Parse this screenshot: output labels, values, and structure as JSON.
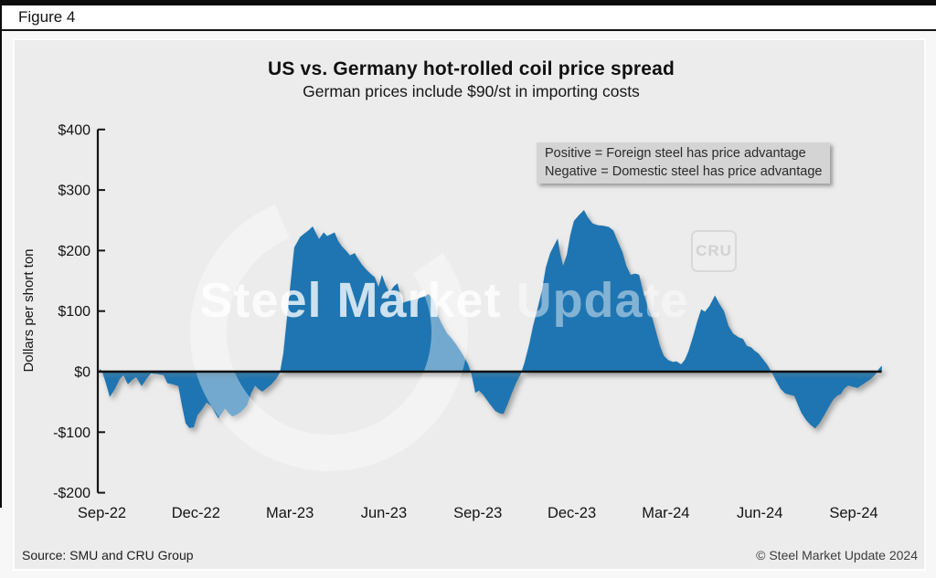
{
  "figure_label": "Figure 4",
  "title": "US vs. Germany hot-rolled coil price spread",
  "subtitle": "German prices include $90/st in importing costs",
  "annotation": {
    "line1": "Positive = Foreign steel has price advantage",
    "line2": "Negative = Domestic steel has price advantage"
  },
  "watermark": {
    "primary": "Steel Market",
    "secondary": "Update",
    "logo": "CRU"
  },
  "footer": {
    "source": "Source: SMU and CRU Group",
    "copyright": "© Steel Market Update 2024"
  },
  "colors": {
    "area_blue": "#1e75b1",
    "panel_bg": "#ececec",
    "annotation_bg": "#d4d4d4",
    "axis_black": "#141414"
  },
  "chart_data": {
    "type": "area",
    "title": "US vs. Germany hot-rolled coil price spread",
    "subtitle": "German prices include $90/st in importing costs",
    "ylabel": "Dollars per short ton",
    "ylim": [
      -200,
      400
    ],
    "ytick_values": [
      400,
      300,
      200,
      100,
      0,
      -100,
      -200
    ],
    "ytick_labels": [
      "$400",
      "$300",
      "$200",
      "$100",
      "$0",
      "-$100",
      "-$200"
    ],
    "xtick_labels": [
      "Sep-22",
      "Dec-22",
      "Mar-23",
      "Jun-23",
      "Sep-23",
      "Dec-23",
      "Mar-24",
      "Jun-24",
      "Sep-24"
    ],
    "xtick_positions_months": [
      0,
      3,
      6,
      9,
      12,
      15,
      18,
      21,
      24
    ],
    "x_unit": "months since Sep-2022",
    "series_name": "US minus Germany hot-rolled coil price spread ($/short ton)",
    "grid": false,
    "legend": "none",
    "baseline": 0,
    "points": [
      [
        -0.07,
        5
      ],
      [
        0.01,
        0
      ],
      [
        0.13,
        -20
      ],
      [
        0.25,
        -42
      ],
      [
        0.42,
        -28
      ],
      [
        0.57,
        -12
      ],
      [
        0.69,
        -6
      ],
      [
        0.83,
        -21
      ],
      [
        0.98,
        -13
      ],
      [
        1.09,
        -9
      ],
      [
        1.27,
        -24
      ],
      [
        1.42,
        -12
      ],
      [
        1.56,
        -3
      ],
      [
        1.77,
        -4
      ],
      [
        1.97,
        -6
      ],
      [
        2.09,
        -19
      ],
      [
        2.26,
        -21
      ],
      [
        2.44,
        -24
      ],
      [
        2.55,
        -55
      ],
      [
        2.67,
        -85
      ],
      [
        2.79,
        -93
      ],
      [
        2.93,
        -92
      ],
      [
        3.05,
        -72
      ],
      [
        3.2,
        -62
      ],
      [
        3.34,
        -51
      ],
      [
        3.49,
        -57
      ],
      [
        3.63,
        -70
      ],
      [
        3.72,
        -77
      ],
      [
        3.84,
        -68
      ],
      [
        3.93,
        -61
      ],
      [
        4.04,
        -68
      ],
      [
        4.16,
        -74
      ],
      [
        4.3,
        -71
      ],
      [
        4.45,
        -66
      ],
      [
        4.63,
        -56
      ],
      [
        4.77,
        -35
      ],
      [
        4.89,
        -23
      ],
      [
        5.0,
        -29
      ],
      [
        5.12,
        -33
      ],
      [
        5.27,
        -27
      ],
      [
        5.41,
        -21
      ],
      [
        5.56,
        -12
      ],
      [
        5.68,
        -2
      ],
      [
        5.79,
        30
      ],
      [
        5.91,
        90
      ],
      [
        6.03,
        150
      ],
      [
        6.14,
        205
      ],
      [
        6.32,
        222
      ],
      [
        6.46,
        228
      ],
      [
        6.61,
        234
      ],
      [
        6.73,
        240
      ],
      [
        6.84,
        228
      ],
      [
        6.93,
        219
      ],
      [
        7.08,
        230
      ],
      [
        7.19,
        224
      ],
      [
        7.31,
        227
      ],
      [
        7.43,
        230
      ],
      [
        7.54,
        216
      ],
      [
        7.66,
        207
      ],
      [
        7.81,
        199
      ],
      [
        7.92,
        192
      ],
      [
        8.07,
        196
      ],
      [
        8.19,
        185
      ],
      [
        8.3,
        177
      ],
      [
        8.45,
        168
      ],
      [
        8.59,
        161
      ],
      [
        8.71,
        156
      ],
      [
        8.83,
        140
      ],
      [
        8.94,
        160
      ],
      [
        9.06,
        143
      ],
      [
        9.18,
        130
      ],
      [
        9.32,
        141
      ],
      [
        9.44,
        146
      ],
      [
        9.58,
        113
      ],
      [
        9.73,
        116
      ],
      [
        9.91,
        118
      ],
      [
        10.11,
        121
      ],
      [
        10.29,
        124
      ],
      [
        10.43,
        128
      ],
      [
        10.58,
        119
      ],
      [
        10.72,
        93
      ],
      [
        10.87,
        77
      ],
      [
        11.02,
        63
      ],
      [
        11.16,
        55
      ],
      [
        11.31,
        45
      ],
      [
        11.42,
        36
      ],
      [
        11.54,
        26
      ],
      [
        11.69,
        12
      ],
      [
        11.8,
        -5
      ],
      [
        11.92,
        -35
      ],
      [
        12.04,
        -31
      ],
      [
        12.18,
        -39
      ],
      [
        12.36,
        -52
      ],
      [
        12.56,
        -65
      ],
      [
        12.71,
        -69
      ],
      [
        12.82,
        -70
      ],
      [
        12.94,
        -55
      ],
      [
        13.09,
        -35
      ],
      [
        13.23,
        -18
      ],
      [
        13.38,
        -3
      ],
      [
        13.49,
        15
      ],
      [
        13.64,
        45
      ],
      [
        13.76,
        75
      ],
      [
        13.9,
        103
      ],
      [
        14.05,
        135
      ],
      [
        14.17,
        172
      ],
      [
        14.31,
        196
      ],
      [
        14.43,
        208
      ],
      [
        14.55,
        220
      ],
      [
        14.63,
        195
      ],
      [
        14.72,
        175
      ],
      [
        14.84,
        193
      ],
      [
        14.95,
        225
      ],
      [
        15.07,
        249
      ],
      [
        15.22,
        258
      ],
      [
        15.39,
        267
      ],
      [
        15.51,
        255
      ],
      [
        15.66,
        245
      ],
      [
        15.83,
        242
      ],
      [
        16.01,
        241
      ],
      [
        16.18,
        239
      ],
      [
        16.33,
        233
      ],
      [
        16.47,
        215
      ],
      [
        16.62,
        197
      ],
      [
        16.74,
        175
      ],
      [
        16.88,
        160
      ],
      [
        17.03,
        162
      ],
      [
        17.15,
        160
      ],
      [
        17.29,
        130
      ],
      [
        17.44,
        105
      ],
      [
        17.56,
        90
      ],
      [
        17.7,
        64
      ],
      [
        17.82,
        42
      ],
      [
        17.94,
        26
      ],
      [
        18.08,
        19
      ],
      [
        18.23,
        16
      ],
      [
        18.34,
        17
      ],
      [
        18.49,
        12
      ],
      [
        18.61,
        20
      ],
      [
        18.72,
        33
      ],
      [
        18.87,
        58
      ],
      [
        19.01,
        84
      ],
      [
        19.13,
        103
      ],
      [
        19.25,
        99
      ],
      [
        19.39,
        108
      ],
      [
        19.57,
        126
      ],
      [
        19.71,
        112
      ],
      [
        19.86,
        100
      ],
      [
        20.0,
        76
      ],
      [
        20.15,
        63
      ],
      [
        20.32,
        57
      ],
      [
        20.47,
        54
      ],
      [
        20.58,
        43
      ],
      [
        20.73,
        40
      ],
      [
        20.85,
        34
      ],
      [
        20.96,
        30
      ],
      [
        21.08,
        22
      ],
      [
        21.23,
        12
      ],
      [
        21.37,
        0
      ],
      [
        21.52,
        -15
      ],
      [
        21.66,
        -28
      ],
      [
        21.81,
        -36
      ],
      [
        21.95,
        -38
      ],
      [
        22.1,
        -40
      ],
      [
        22.22,
        -55
      ],
      [
        22.33,
        -68
      ],
      [
        22.48,
        -80
      ],
      [
        22.62,
        -88
      ],
      [
        22.77,
        -94
      ],
      [
        22.92,
        -84
      ],
      [
        23.06,
        -72
      ],
      [
        23.21,
        -58
      ],
      [
        23.35,
        -46
      ],
      [
        23.47,
        -40
      ],
      [
        23.59,
        -37
      ],
      [
        23.7,
        -28
      ],
      [
        23.82,
        -23
      ],
      [
        23.97,
        -25
      ],
      [
        24.12,
        -27
      ],
      [
        24.26,
        -22
      ],
      [
        24.41,
        -17
      ],
      [
        24.55,
        -12
      ],
      [
        24.7,
        -4
      ],
      [
        24.81,
        5
      ],
      [
        24.9,
        10
      ]
    ]
  }
}
